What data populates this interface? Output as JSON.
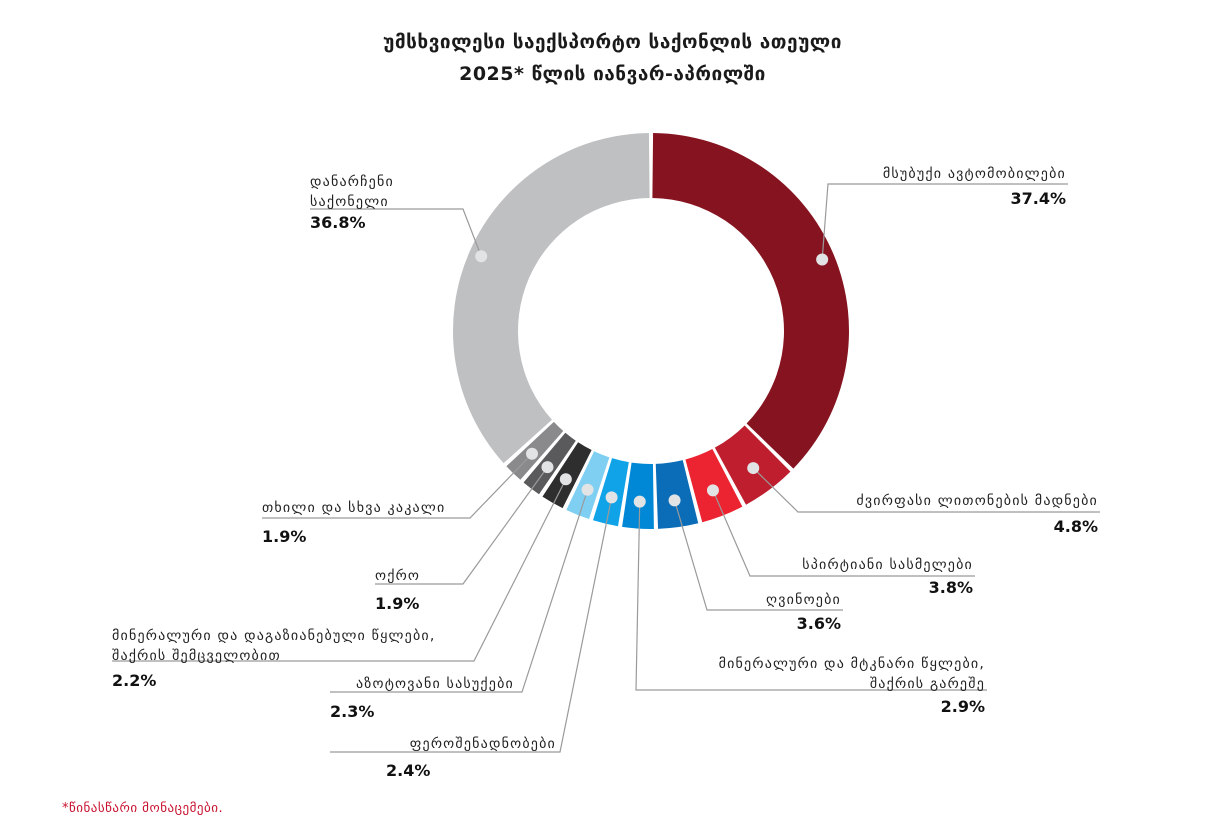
{
  "chart_data": {
    "type": "donut",
    "title": "უმსხვილესი საექსპორტო საქონლის ათეული",
    "subtitle": "2025* წლის იანვარ-აპრილში",
    "unit": "%",
    "slices": [
      {
        "label": [
          "მსუბუქი ავტომობილები"
        ],
        "value": 37.4,
        "value_text": "37.4%",
        "color": "#861420"
      },
      {
        "label": [
          "ძვირფასი ლითონების მადნები"
        ],
        "value": 4.8,
        "value_text": "4.8%",
        "color": "#be1e2d"
      },
      {
        "label": [
          "სპირტიანი სასმელები"
        ],
        "value": 3.8,
        "value_text": "3.8%",
        "color": "#ec2330"
      },
      {
        "label": [
          "ღვინოები"
        ],
        "value": 3.6,
        "value_text": "3.6%",
        "color": "#0b6db8"
      },
      {
        "label": [
          "მინერალური და მტკნარი წყლები,",
          "შაქრის გარეშე"
        ],
        "value": 2.9,
        "value_text": "2.9%",
        "color": "#0088d6"
      },
      {
        "label": [
          "ფეროშენადნობები"
        ],
        "value": 2.4,
        "value_text": "2.4%",
        "color": "#10a3e8"
      },
      {
        "label": [
          "აზოტოვანი სასუქები"
        ],
        "value": 2.3,
        "value_text": "2.3%",
        "color": "#7fcff3"
      },
      {
        "label": [
          "მინერალური და დაგაზიანებული წყლები,",
          "შაქრის შემცველობით"
        ],
        "value": 2.2,
        "value_text": "2.2%",
        "color": "#2e2e2e"
      },
      {
        "label": [
          "ოქრო"
        ],
        "value": 1.9,
        "value_text": "1.9%",
        "color": "#5a5a5c"
      },
      {
        "label": [
          "თხილი და სხვა კაკალი"
        ],
        "value": 1.9,
        "value_text": "1.9%",
        "color": "#8a8a8c"
      },
      {
        "label": [
          "დანარჩენი",
          "საქონელი"
        ],
        "value": 36.8,
        "value_text": "36.8%",
        "color": "#bfc0c2"
      }
    ]
  },
  "footnote": "*წინასწარი მონაცემები."
}
